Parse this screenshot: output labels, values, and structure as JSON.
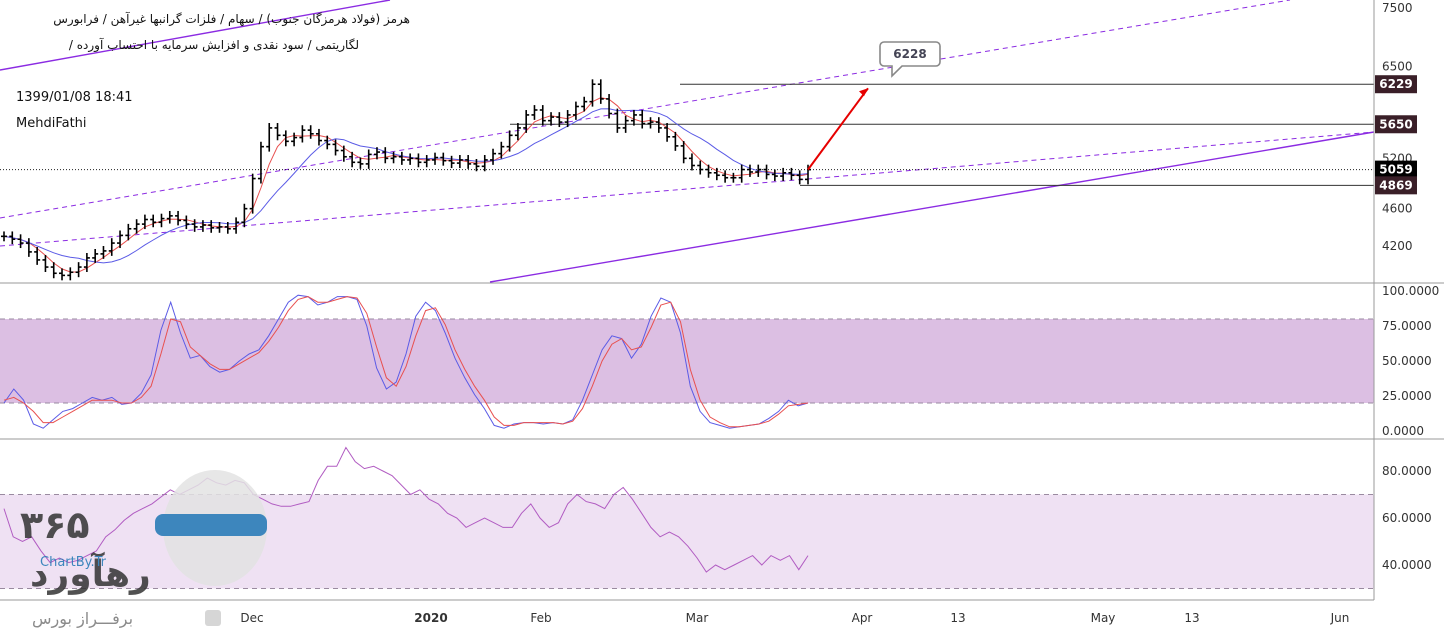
{
  "header": {
    "line1": "هرمز (فولاد هرمزگان جنوب) / سهام / فلزات گرانبها غیرآهن / فرابورس",
    "line2": "لگاریتمی / سود نقدی و افزایش سرمایه با احتساب آورده /",
    "datetime": "1399/01/08 18:41",
    "author": "MehdiFathi"
  },
  "watermark": {
    "digits": "۳۶۵",
    "brand": "رهآورد",
    "sub": "ChartBy.Tr",
    "footer": "برفـــراز بورس"
  },
  "colors": {
    "bg": "#ffffff",
    "candle": "#000000",
    "ma_fast": "#e8504f",
    "ma_slow": "#5b5be6",
    "trend": "#8b2be2",
    "arrow": "#e60000",
    "vol_up": "#9fd9b8",
    "vol_down": "#f2b3bd",
    "osc_band": "#dcbfe3",
    "rsi_band": "#efe1f3",
    "rsi_line": "#b15cc2"
  },
  "chart_data": [
    {
      "type": "candlestick",
      "panel": "price",
      "y_scale": "log",
      "ylim": [
        3860,
        7600
      ],
      "y_ticks": [
        "7500",
        "6500",
        "5200",
        "4600",
        "4200"
      ],
      "x_ticks": [
        "Dec",
        "2020",
        "Feb",
        "Mar",
        "Apr",
        "13",
        "May",
        "13",
        "Jun"
      ],
      "price_labels": [
        {
          "value": 6229,
          "label": "6229",
          "style": "dark"
        },
        {
          "value": 5650,
          "label": "5650",
          "style": "dark"
        },
        {
          "value": 5059,
          "label": "5059",
          "style": "current"
        },
        {
          "value": 4869,
          "label": "4869",
          "style": "dark"
        }
      ],
      "callout": {
        "label": "6228",
        "target": 6228
      },
      "close": [
        4300,
        4270,
        4230,
        4140,
        4060,
        3990,
        3930,
        3910,
        3940,
        3990,
        4080,
        4120,
        4150,
        4230,
        4310,
        4380,
        4430,
        4480,
        4450,
        4490,
        4520,
        4470,
        4430,
        4400,
        4420,
        4390,
        4400,
        4380,
        4450,
        4600,
        4950,
        5350,
        5600,
        5500,
        5420,
        5470,
        5570,
        5520,
        5430,
        5380,
        5300,
        5220,
        5150,
        5130,
        5250,
        5280,
        5200,
        5220,
        5180,
        5200,
        5150,
        5180,
        5210,
        5170,
        5140,
        5180,
        5130,
        5100,
        5180,
        5260,
        5350,
        5500,
        5600,
        5780,
        5850,
        5700,
        5750,
        5680,
        5780,
        5900,
        5970,
        6229,
        6010,
        5800,
        5600,
        5700,
        5780,
        5660,
        5680,
        5600,
        5480,
        5360,
        5200,
        5110,
        5060,
        5020,
        4990,
        4960,
        4960,
        5060,
        5030,
        5060,
        5000,
        4980,
        5020,
        4990,
        4940,
        5059
      ],
      "volume": [
        0,
        0,
        0,
        0,
        0,
        0,
        0,
        0,
        0,
        0,
        0,
        0,
        0,
        0,
        0,
        0,
        0,
        0,
        0,
        0,
        0,
        0,
        0,
        0,
        0,
        0,
        0,
        0,
        0,
        0,
        0,
        0,
        0,
        0,
        0,
        0,
        0,
        0,
        0,
        0,
        0,
        0,
        0,
        0,
        0,
        0,
        0,
        0,
        0,
        0,
        0,
        0,
        0,
        0,
        0,
        0,
        0,
        0,
        0,
        0,
        0,
        0,
        0,
        0,
        0,
        0,
        0,
        0,
        0,
        0,
        0,
        0,
        0,
        0,
        0,
        0,
        0,
        0,
        0,
        0,
        0,
        0,
        0,
        0,
        0,
        0,
        0,
        0,
        0,
        0,
        0,
        0,
        0,
        0,
        0,
        0,
        0,
        0
      ]
    },
    {
      "type": "line",
      "panel": "stochastic",
      "ylim": [
        0,
        100
      ],
      "y_ticks": [
        "100.0000",
        "75.0000",
        "50.0000",
        "25.0000",
        "0.0000"
      ],
      "band": [
        20,
        80
      ],
      "series": [
        {
          "values": [
            20,
            30,
            22,
            5,
            2,
            8,
            14,
            16,
            20,
            24,
            22,
            24,
            19,
            20,
            27,
            40,
            72,
            92,
            70,
            52,
            54,
            46,
            42,
            44,
            50,
            55,
            58,
            68,
            80,
            92,
            97,
            96,
            90,
            92,
            96,
            96,
            94,
            75,
            45,
            30,
            35,
            55,
            82,
            92,
            86,
            70,
            52,
            38,
            26,
            16,
            4,
            2,
            5,
            6,
            6,
            5,
            6,
            5,
            8,
            22,
            40,
            58,
            68,
            66,
            52,
            62,
            82,
            95,
            92,
            70,
            32,
            14,
            6,
            4,
            2,
            3,
            4,
            5,
            9,
            14,
            22,
            18,
            20
          ]
        },
        {
          "values": [
            22,
            24,
            20,
            14,
            6,
            6,
            10,
            14,
            18,
            22,
            22,
            22,
            20,
            20,
            24,
            32,
            55,
            80,
            78,
            60,
            54,
            48,
            44,
            44,
            48,
            52,
            56,
            64,
            74,
            86,
            94,
            96,
            92,
            92,
            94,
            96,
            95,
            84,
            60,
            38,
            32,
            46,
            68,
            86,
            88,
            76,
            58,
            44,
            32,
            22,
            10,
            4,
            4,
            6,
            6,
            6,
            6,
            5,
            7,
            16,
            32,
            50,
            62,
            66,
            58,
            60,
            74,
            90,
            92,
            78,
            44,
            22,
            10,
            6,
            3,
            3,
            4,
            5,
            7,
            12,
            18,
            19,
            20
          ]
        }
      ]
    },
    {
      "type": "line",
      "panel": "rsi",
      "ylim": [
        26,
        92
      ],
      "y_ticks": [
        "80.0000",
        "60.0000",
        "40.0000"
      ],
      "band": [
        30,
        70
      ],
      "series": [
        {
          "values": [
            64,
            52,
            50,
            52,
            46,
            41,
            43,
            41,
            42,
            44,
            46,
            52,
            55,
            59,
            62,
            64,
            66,
            69,
            72,
            70,
            72,
            74,
            77,
            75,
            74,
            76,
            75,
            70,
            68,
            66,
            65,
            65,
            66,
            67,
            76,
            82,
            82,
            90,
            84,
            81,
            82,
            80,
            78,
            74,
            70,
            72,
            68,
            66,
            62,
            60,
            56,
            58,
            60,
            58,
            56,
            56,
            62,
            66,
            60,
            56,
            58,
            66,
            70,
            67,
            66,
            64,
            70,
            73,
            68,
            62,
            56,
            52,
            54,
            52,
            48,
            43,
            37,
            40,
            38,
            40,
            42,
            44,
            40,
            44,
            42,
            44,
            38,
            44
          ]
        }
      ]
    }
  ]
}
